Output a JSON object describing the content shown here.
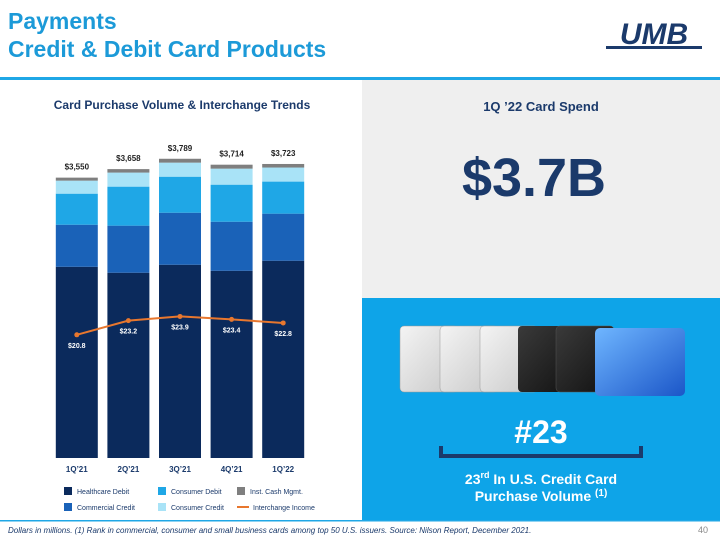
{
  "header": {
    "title": "Payments",
    "subtitle": "Credit & Debit Card Products",
    "logo": "UMB"
  },
  "chart_data": {
    "type": "bar",
    "stacked": true,
    "title": "Card Purchase Volume & Interchange Trends",
    "categories": [
      "1Q’21",
      "2Q’21",
      "3Q’21",
      "4Q’21",
      "1Q’22"
    ],
    "series": [
      {
        "name": "Healthcare Debit",
        "color": "#0b2a5c",
        "values": [
          2421,
          2346,
          2447,
          2371,
          2498
        ]
      },
      {
        "name": "Commercial Credit",
        "color": "#1a62b8",
        "values": [
          533,
          596,
          659,
          621,
          596
        ]
      },
      {
        "name": "Consumer Debit",
        "color": "#1fa7e6",
        "values": [
          393,
          494,
          456,
          469,
          406
        ]
      },
      {
        "name": "Consumer Credit",
        "color": "#a9e3f7",
        "values": [
          165,
          178,
          178,
          203,
          178
        ]
      },
      {
        "name": "Inst. Cash Mgmt.",
        "color": "#7f7f7f",
        "values": [
          38,
          44,
          49,
          50,
          45
        ]
      },
      {
        "name": "Interchange Income",
        "type": "line",
        "axis": "y2",
        "color": "#e8772e",
        "values": [
          20.8,
          23.2,
          23.9,
          23.4,
          22.8
        ],
        "value_labels": [
          "$20.8",
          "$23.2",
          "$23.9",
          "$23.4",
          "$22.8"
        ]
      }
    ],
    "totals": [
      3550,
      3658,
      3789,
      3714,
      3723
    ],
    "total_labels": [
      "$3,550",
      "$3,658",
      "$3,789",
      "$3,714",
      "$3,723"
    ],
    "ylim": [
      0,
      3900
    ],
    "y2lim": [
      0,
      52
    ]
  },
  "panel": {
    "heading": "1Q ’22 Card Spend",
    "headline": "$3.7B",
    "rank": "#23",
    "rank_number": "23",
    "rank_suffix": "rd",
    "rank_text": " In U.S. Credit Card",
    "rank_text2": "Purchase Volume ",
    "footnote_ref": "(1)"
  },
  "footer": {
    "note": "Dollars in millions. (1) Rank in commercial, consumer and small business cards among top 50 U.S. issuers. Source: Nilson Report, December 2021.",
    "page": "40"
  }
}
